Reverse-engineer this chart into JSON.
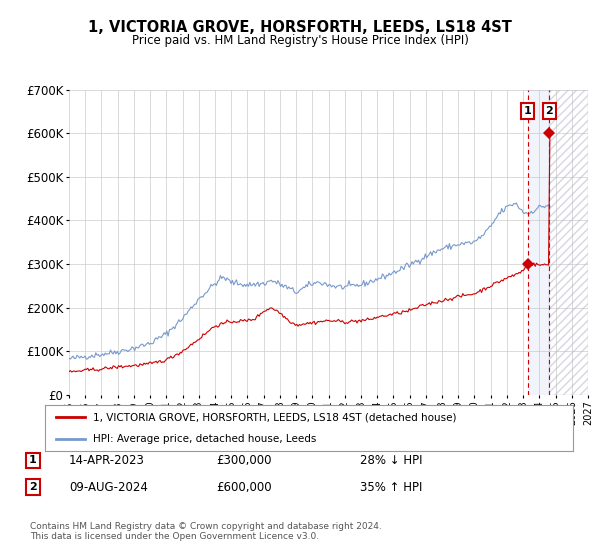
{
  "title": "1, VICTORIA GROVE, HORSFORTH, LEEDS, LS18 4ST",
  "subtitle": "Price paid vs. HM Land Registry's House Price Index (HPI)",
  "legend_line1": "1, VICTORIA GROVE, HORSFORTH, LEEDS, LS18 4ST (detached house)",
  "legend_line2": "HPI: Average price, detached house, Leeds",
  "annotation1_date": "14-APR-2023",
  "annotation1_price": "£300,000",
  "annotation1_hpi": "28% ↓ HPI",
  "annotation2_date": "09-AUG-2024",
  "annotation2_price": "£600,000",
  "annotation2_hpi": "35% ↑ HPI",
  "footnote": "Contains HM Land Registry data © Crown copyright and database right 2024.\nThis data is licensed under the Open Government Licence v3.0.",
  "ylim": [
    0,
    700000
  ],
  "yticks": [
    0,
    100000,
    200000,
    300000,
    400000,
    500000,
    600000,
    700000
  ],
  "ytick_labels": [
    "£0",
    "£100K",
    "£200K",
    "£300K",
    "£400K",
    "£500K",
    "£600K",
    "£700K"
  ],
  "hpi_color": "#7799cc",
  "price_color": "#cc0000",
  "background_color": "#ffffff",
  "grid_color": "#cccccc",
  "sale1_year": 2023.29,
  "sale1_value": 300000,
  "sale2_year": 2024.61,
  "sale2_value": 600000,
  "xlim_start": 1995,
  "xlim_end": 2027,
  "shade_between_start": 2023.29,
  "shade_between_end": 2024.61,
  "future_shade_start": 2024.61,
  "future_shade_end": 2027
}
